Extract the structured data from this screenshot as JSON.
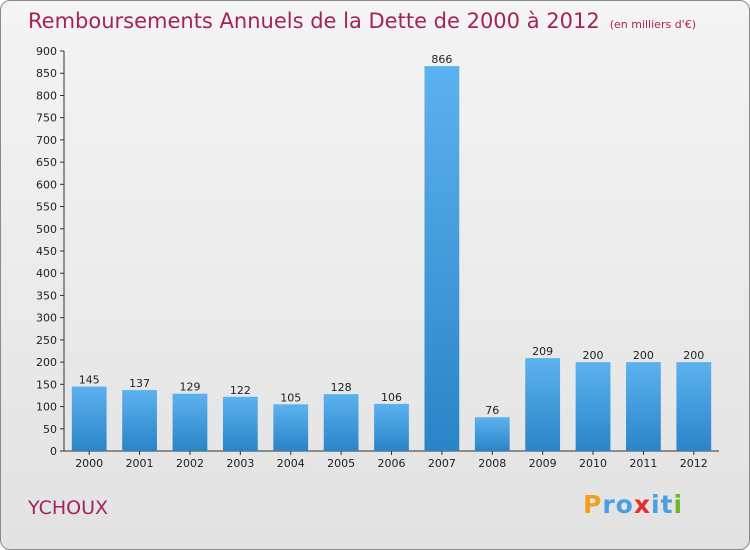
{
  "chart_data": {
    "type": "bar",
    "title": "Remboursements Annuels de la Dette de 2000 à 2012",
    "subtitle": "(en milliers d'€)",
    "categories": [
      "2000",
      "2001",
      "2002",
      "2003",
      "2004",
      "2005",
      "2006",
      "2007",
      "2008",
      "2009",
      "2010",
      "2011",
      "2012"
    ],
    "values": [
      145,
      137,
      129,
      122,
      105,
      128,
      106,
      866,
      76,
      209,
      200,
      200,
      200
    ],
    "ylim": [
      0,
      900
    ],
    "ytick_step": 50,
    "grid": false,
    "bar_color": "#3d9de0"
  },
  "footer": {
    "city": "YCHOUX",
    "logo_letters": [
      "P",
      "r",
      "o",
      "x",
      "i",
      "t",
      "i"
    ],
    "logo_colors": [
      "#f0a020",
      "#4a9fe0",
      "#4a9fe0",
      "#e03030",
      "#4a9fe0",
      "#4a9fe0",
      "#6ab82a"
    ]
  }
}
